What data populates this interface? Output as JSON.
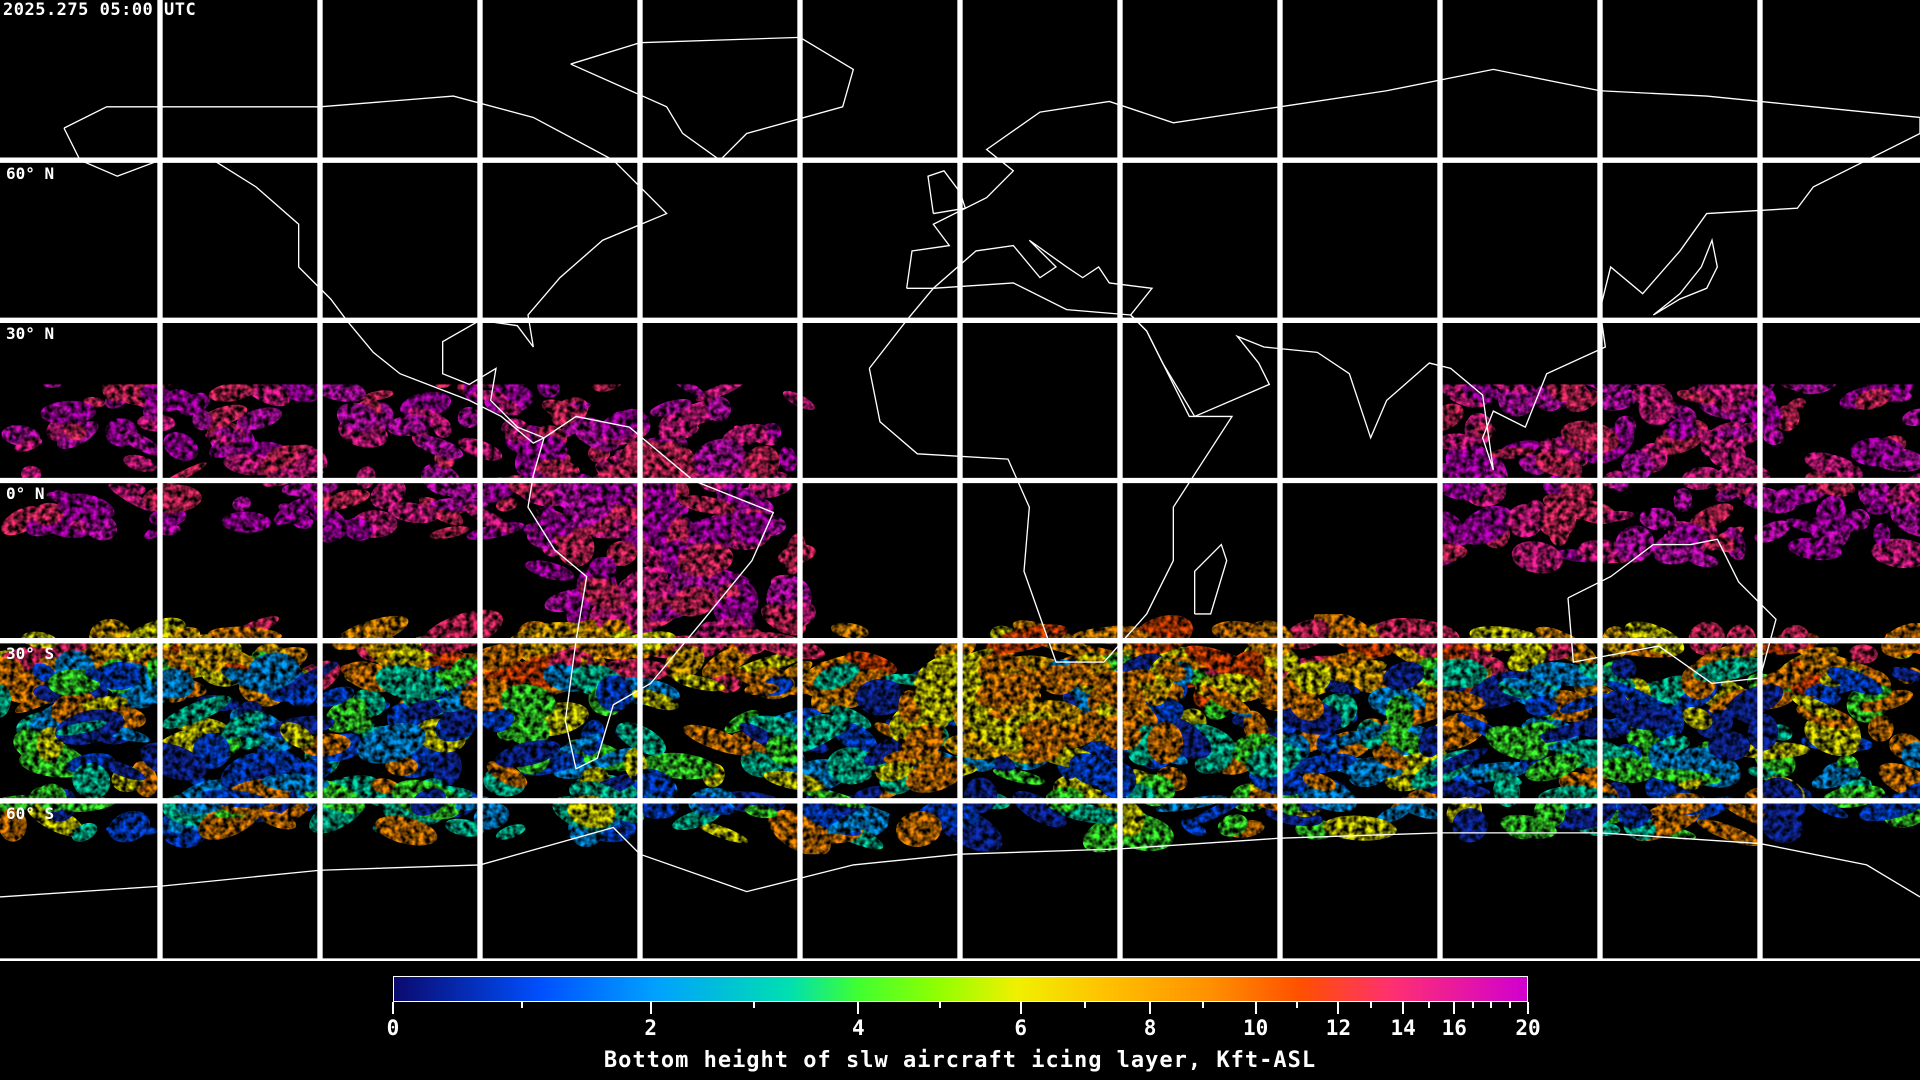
{
  "timestamp": "2025.275 05:00 UTC",
  "map": {
    "projection": "equirectangular",
    "lon_range": [
      -180,
      180
    ],
    "lat_range": [
      -90,
      90
    ],
    "graticule_step_deg": 30,
    "lat_labels": [
      "60° N",
      "30° N",
      "0° N",
      "30° S",
      "60° S"
    ],
    "grid_color": "#ffffff",
    "coastline_color": "#ffffff",
    "background_color": "#000000"
  },
  "colorbar": {
    "title": "Bottom height of slw aircraft icing layer, Kft-ASL",
    "min": 0,
    "max": 20,
    "tick_labels": [
      "0",
      "2",
      "4",
      "6",
      "8",
      "10",
      "12",
      "14",
      "16",
      "20"
    ],
    "minor_ticks": [
      1,
      3,
      5,
      7,
      9,
      11,
      13,
      15,
      17,
      18,
      19
    ],
    "colors": [
      "#0a0a6e",
      "#0050ff",
      "#00a0ff",
      "#00e0b0",
      "#40ff30",
      "#90ff00",
      "#f0f000",
      "#ffc000",
      "#ff9000",
      "#ff5000",
      "#ff3070",
      "#d000d0"
    ]
  }
}
